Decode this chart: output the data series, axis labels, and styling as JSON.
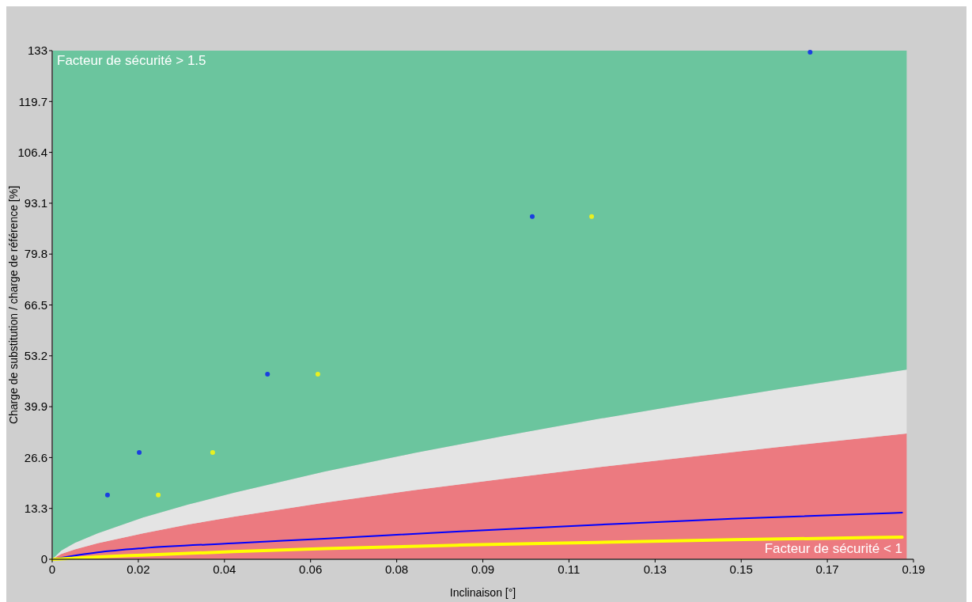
{
  "chart_data": {
    "type": "area",
    "stacked": true,
    "xlabel": "Inclinaison [°]",
    "ylabel": "Charge de substitution / charge de référence [%]",
    "annotations": [
      "Facteur de sécurité > 1.5",
      "Facteur de sécurité < 1"
    ],
    "xlim": [
      0,
      0.19
    ],
    "ylim": [
      0,
      133
    ],
    "xticks": [
      0,
      {
        "value": 0.019,
        "label": "0.02"
      },
      {
        "value": 0.038,
        "label": "0.04"
      },
      {
        "value": 0.057,
        "label": "0.06"
      },
      {
        "value": 0.076,
        "label": "0.08"
      },
      {
        "value": 0.095,
        "label": "0.09"
      },
      {
        "value": 0.114,
        "label": "0.11"
      },
      {
        "value": 0.133,
        "label": "0.13"
      },
      {
        "value": 0.152,
        "label": "0.15"
      },
      {
        "value": 0.171,
        "label": "0.17"
      },
      0.19
    ],
    "yticks": [
      0,
      13.3,
      26.6,
      39.9,
      53.2,
      66.5,
      79.8,
      93.1,
      106.4,
      119.7,
      133
    ],
    "grid": false,
    "x": [
      0,
      0.002,
      0.005,
      0.01,
      0.02,
      0.03,
      0.04,
      0.06,
      0.08,
      0.1,
      0.12,
      0.14,
      0.16,
      0.1885
    ],
    "series": [
      {
        "color": "#ec7a80",
        "values": [
          0,
          1.4,
          2.6,
          4.2,
          6.8,
          9.1,
          11.1,
          14.8,
          18.1,
          21.1,
          24.0,
          26.7,
          29.3,
          32.9
        ]
      },
      {
        "color": "#e4e4e4",
        "values": [
          0,
          0.9,
          1.7,
          2.6,
          4.1,
          5.2,
          6.3,
          8.1,
          9.7,
          11.2,
          12.6,
          13.9,
          15.1,
          16.7
        ]
      },
      {
        "color": "#6bc59e",
        "values": [
          133,
          130.7,
          128.7,
          126.2,
          122.1,
          118.7,
          115.6,
          110.1,
          105.2,
          100.7,
          96.4,
          92.4,
          88.6,
          83.4
        ]
      },
      {
        "type": "line",
        "color": "#0000ff",
        "x": [
          0,
          0.01,
          0.02,
          0.04,
          0.06,
          0.09,
          0.12,
          0.15,
          0.1875
        ],
        "values": [
          0,
          1.8,
          2.9,
          4.2,
          5.4,
          7.3,
          9.0,
          10.6,
          12.2
        ]
      },
      {
        "type": "line",
        "color": "#ffff00",
        "x": [
          0,
          0.01,
          0.02,
          0.04,
          0.06,
          0.09,
          0.12,
          0.15,
          0.1875
        ],
        "values": [
          0,
          0.6,
          1.1,
          2.0,
          2.8,
          3.7,
          4.4,
          5.1,
          5.8
        ]
      },
      {
        "type": "scatter",
        "color": "#1a3fe0",
        "marker": "circle",
        "x": [
          0.0122,
          0.0192,
          0.0475,
          0.1059,
          0.1672
        ],
        "values": [
          16.8,
          27.9,
          48.4,
          89.6,
          132.6
        ]
      },
      {
        "type": "scatter",
        "color": "#e8f020",
        "marker": "circle",
        "x": [
          0.0234,
          0.0354,
          0.0586,
          0.119
        ],
        "values": [
          16.8,
          27.9,
          48.4,
          89.6
        ]
      }
    ]
  }
}
